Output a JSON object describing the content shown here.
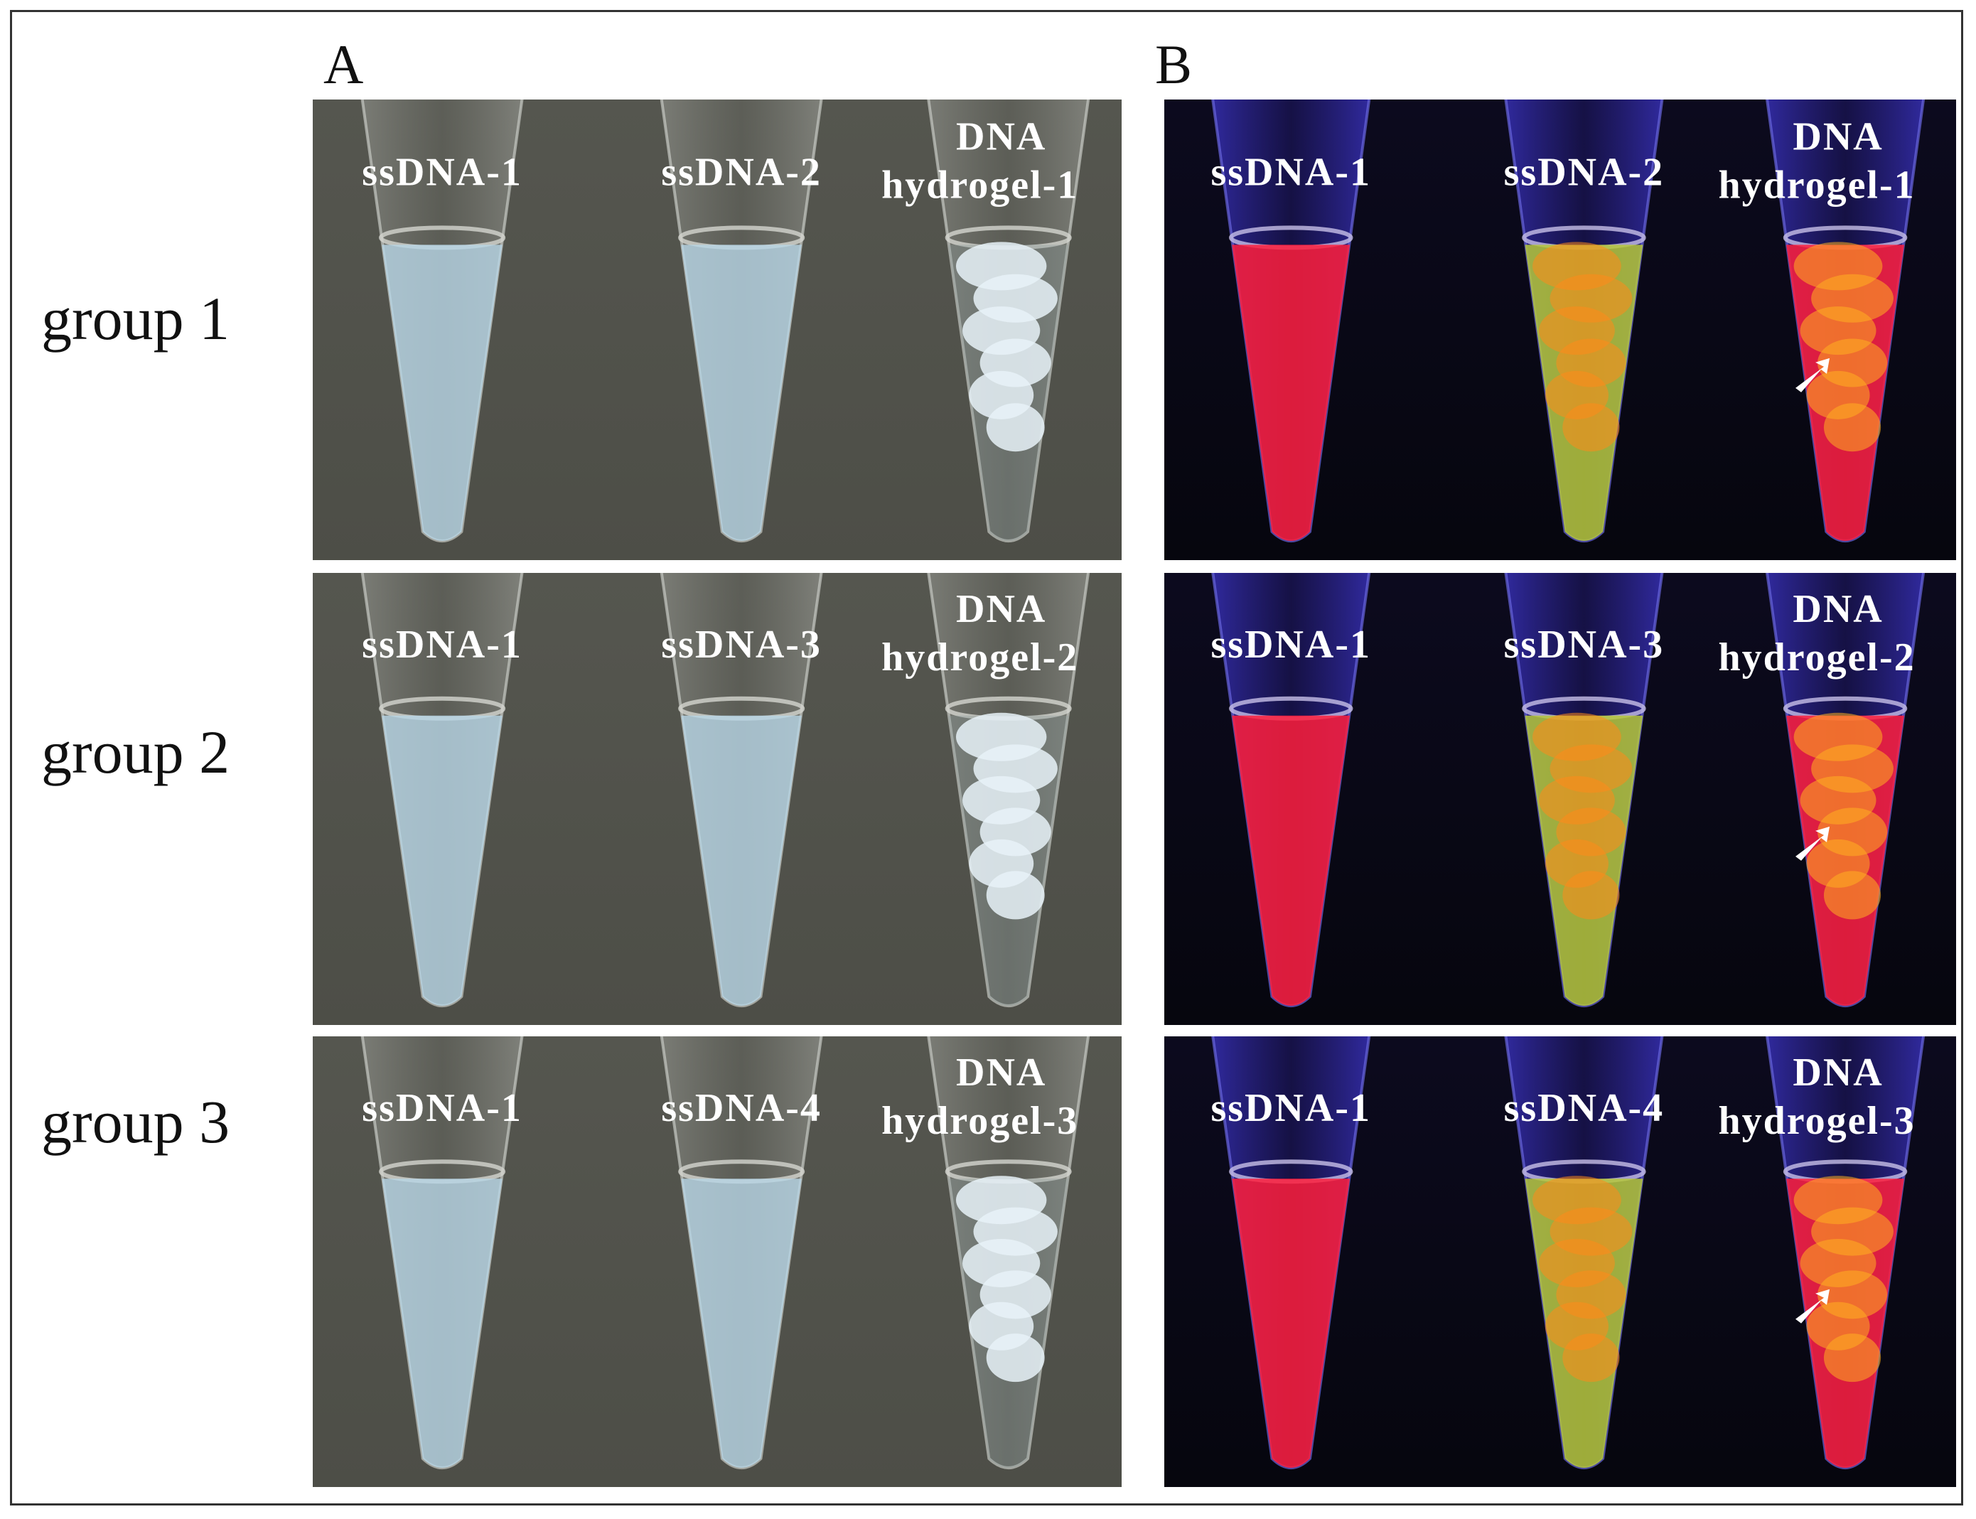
{
  "panels": {
    "A": {
      "letter": "A"
    },
    "B": {
      "letter": "B"
    }
  },
  "groups": [
    {
      "label": "group 1",
      "tubes": [
        "ssDNA-1",
        "ssDNA-2"
      ],
      "hydrogel": [
        "DNA",
        "hydrogel-1"
      ]
    },
    {
      "label": "group 2",
      "tubes": [
        "ssDNA-1",
        "ssDNA-3"
      ],
      "hydrogel": [
        "DNA",
        "hydrogel-2"
      ]
    },
    {
      "label": "group 3",
      "tubes": [
        "ssDNA-1",
        "ssDNA-4"
      ],
      "hydrogel": [
        "DNA",
        "hydrogel-3"
      ]
    }
  ],
  "colors": {
    "bright_bg": "#4d4e47",
    "bright_liquid": "#b8d6e6",
    "bright_gel": "#e8f2f8",
    "uv_bg": "#06060e",
    "uv_red": "#ff1e3c",
    "uv_green": "#b6c83a",
    "uv_orange": "#ff8a1a",
    "tube_top_blue": "#3c34c8"
  }
}
